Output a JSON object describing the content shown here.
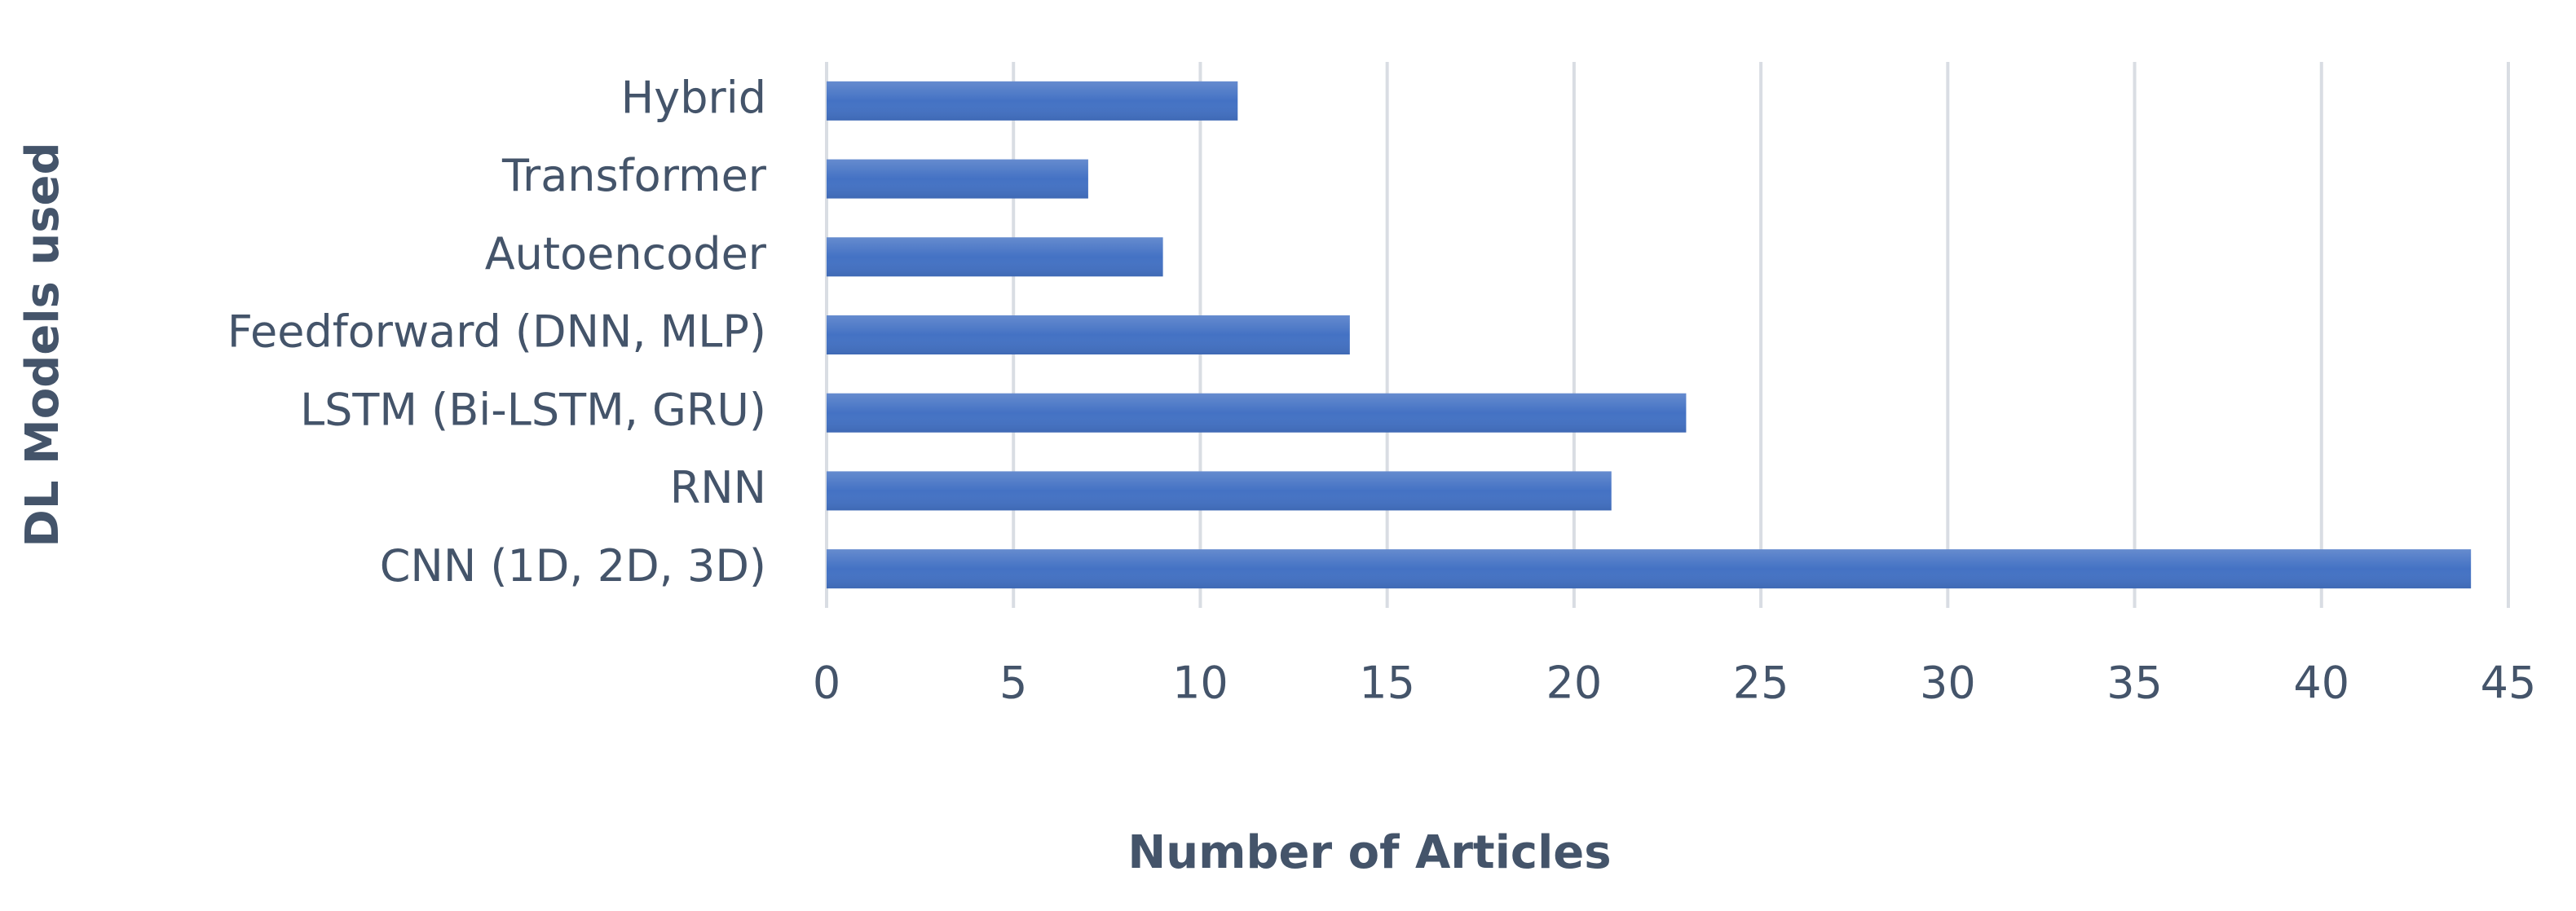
{
  "chart_data": {
    "type": "hbar",
    "x_label": "Number of Articles",
    "y_label": "DL Models used",
    "categories": [
      "CNN (1D, 2D, 3D)",
      "RNN",
      "LSTM (Bi-LSTM, GRU)",
      "Feedforward (DNN, MLP)",
      "Autoencoder",
      "Transformer",
      "Hybrid"
    ],
    "values": [
      44,
      21,
      23,
      14,
      9,
      7,
      11
    ],
    "color": "#4472c4",
    "xlim": [
      0,
      45
    ],
    "xticks": [
      0,
      5,
      10,
      15,
      20,
      25,
      30,
      35,
      40,
      45
    ],
    "grid": true
  }
}
